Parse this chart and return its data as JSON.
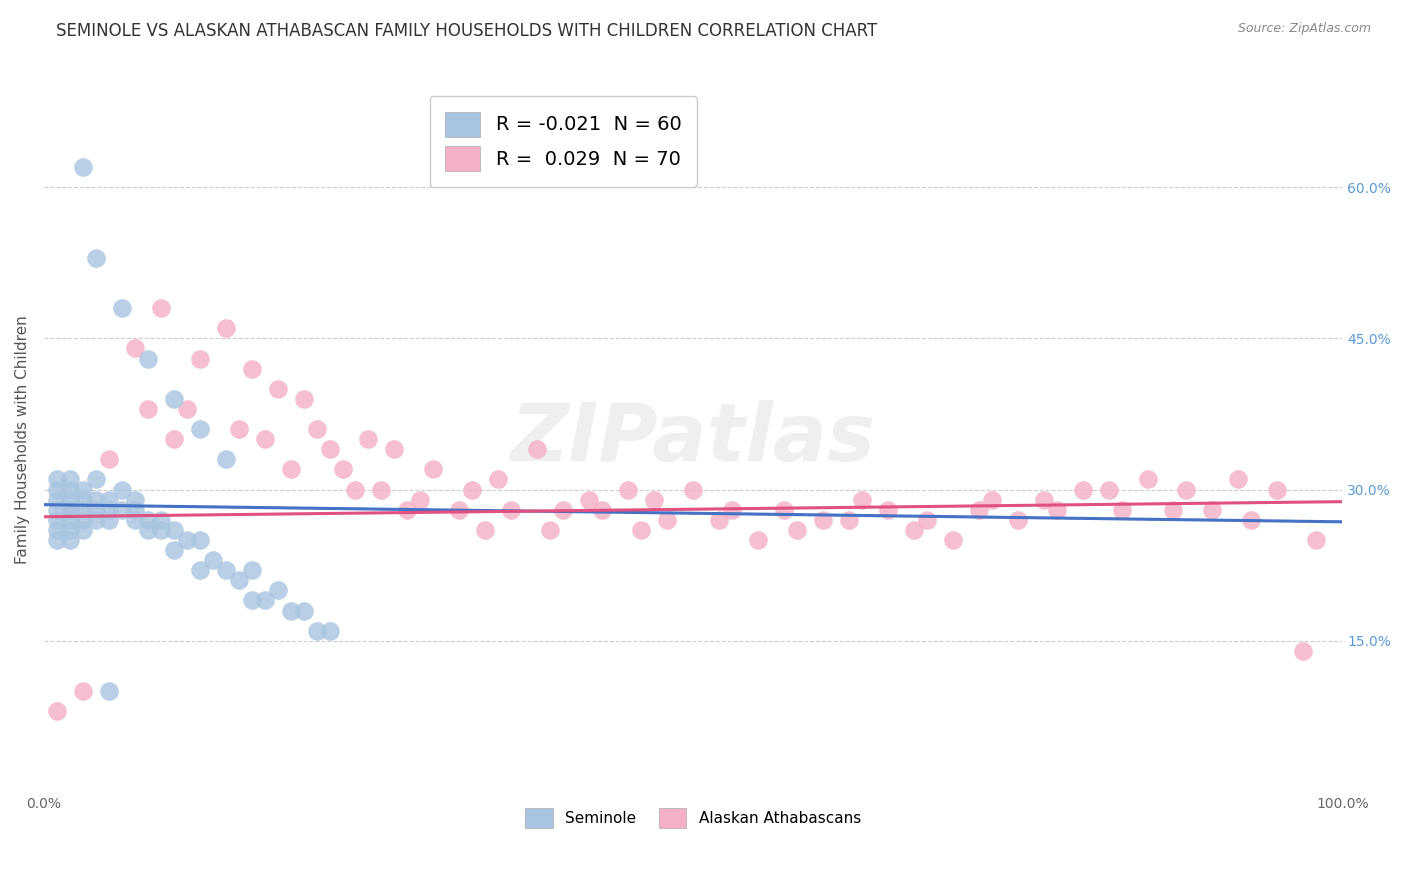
{
  "title": "SEMINOLE VS ALASKAN ATHABASCAN FAMILY HOUSEHOLDS WITH CHILDREN CORRELATION CHART",
  "source": "Source: ZipAtlas.com",
  "ylabel": "Family Households with Children",
  "xlim": [
    0.0,
    1.0
  ],
  "ylim": [
    0.0,
    0.7
  ],
  "xtick_labels": [
    "0.0%",
    "100.0%"
  ],
  "ytick_labels": [
    "15.0%",
    "30.0%",
    "45.0%",
    "60.0%"
  ],
  "ytick_values": [
    0.15,
    0.3,
    0.45,
    0.6
  ],
  "seminole_color": "#a8c4e0",
  "athabascan_color": "#f4b0c4",
  "seminole_line_color": "#4472c4",
  "athabascan_line_color": "#e05080",
  "seminole_line_style": "-",
  "athabascan_line_style": "-",
  "background_color": "#ffffff",
  "grid_color": "#cccccc",
  "title_fontsize": 12,
  "axis_label_fontsize": 11,
  "tick_label_fontsize": 10,
  "seminole_x": [
    0.01,
    0.01,
    0.01,
    0.01,
    0.01,
    0.01,
    0.01,
    0.02,
    0.02,
    0.02,
    0.02,
    0.02,
    0.02,
    0.02,
    0.02,
    0.03,
    0.03,
    0.03,
    0.03,
    0.03,
    0.04,
    0.04,
    0.04,
    0.04,
    0.05,
    0.05,
    0.05,
    0.06,
    0.06,
    0.07,
    0.07,
    0.07,
    0.08,
    0.08,
    0.09,
    0.09,
    0.1,
    0.1,
    0.11,
    0.12,
    0.12,
    0.13,
    0.14,
    0.15,
    0.16,
    0.17,
    0.19,
    0.21,
    0.04,
    0.06,
    0.08,
    0.1,
    0.12,
    0.14,
    0.16,
    0.18,
    0.2,
    0.22,
    0.03,
    0.05
  ],
  "seminole_y": [
    0.28,
    0.29,
    0.27,
    0.3,
    0.26,
    0.25,
    0.31,
    0.28,
    0.27,
    0.29,
    0.3,
    0.26,
    0.25,
    0.28,
    0.31,
    0.27,
    0.28,
    0.29,
    0.26,
    0.3,
    0.28,
    0.29,
    0.27,
    0.31,
    0.27,
    0.29,
    0.28,
    0.28,
    0.3,
    0.27,
    0.29,
    0.28,
    0.27,
    0.26,
    0.26,
    0.27,
    0.26,
    0.24,
    0.25,
    0.22,
    0.25,
    0.23,
    0.22,
    0.21,
    0.19,
    0.19,
    0.18,
    0.16,
    0.53,
    0.48,
    0.43,
    0.39,
    0.36,
    0.33,
    0.22,
    0.2,
    0.18,
    0.16,
    0.62,
    0.1
  ],
  "athabascan_x": [
    0.01,
    0.03,
    0.05,
    0.07,
    0.08,
    0.09,
    0.1,
    0.11,
    0.12,
    0.14,
    0.15,
    0.16,
    0.17,
    0.18,
    0.19,
    0.2,
    0.21,
    0.22,
    0.23,
    0.24,
    0.25,
    0.26,
    0.27,
    0.28,
    0.29,
    0.3,
    0.32,
    0.33,
    0.34,
    0.35,
    0.36,
    0.38,
    0.39,
    0.4,
    0.42,
    0.43,
    0.45,
    0.46,
    0.47,
    0.48,
    0.5,
    0.52,
    0.53,
    0.55,
    0.57,
    0.58,
    0.6,
    0.62,
    0.63,
    0.65,
    0.67,
    0.68,
    0.7,
    0.72,
    0.73,
    0.75,
    0.77,
    0.78,
    0.8,
    0.82,
    0.83,
    0.85,
    0.87,
    0.88,
    0.9,
    0.92,
    0.93,
    0.95,
    0.97,
    0.98
  ],
  "athabascan_y": [
    0.08,
    0.1,
    0.33,
    0.44,
    0.38,
    0.48,
    0.35,
    0.38,
    0.43,
    0.46,
    0.36,
    0.42,
    0.35,
    0.4,
    0.32,
    0.39,
    0.36,
    0.34,
    0.32,
    0.3,
    0.35,
    0.3,
    0.34,
    0.28,
    0.29,
    0.32,
    0.28,
    0.3,
    0.26,
    0.31,
    0.28,
    0.34,
    0.26,
    0.28,
    0.29,
    0.28,
    0.3,
    0.26,
    0.29,
    0.27,
    0.3,
    0.27,
    0.28,
    0.25,
    0.28,
    0.26,
    0.27,
    0.27,
    0.29,
    0.28,
    0.26,
    0.27,
    0.25,
    0.28,
    0.29,
    0.27,
    0.29,
    0.28,
    0.3,
    0.3,
    0.28,
    0.31,
    0.28,
    0.3,
    0.28,
    0.31,
    0.27,
    0.3,
    0.14,
    0.25
  ]
}
